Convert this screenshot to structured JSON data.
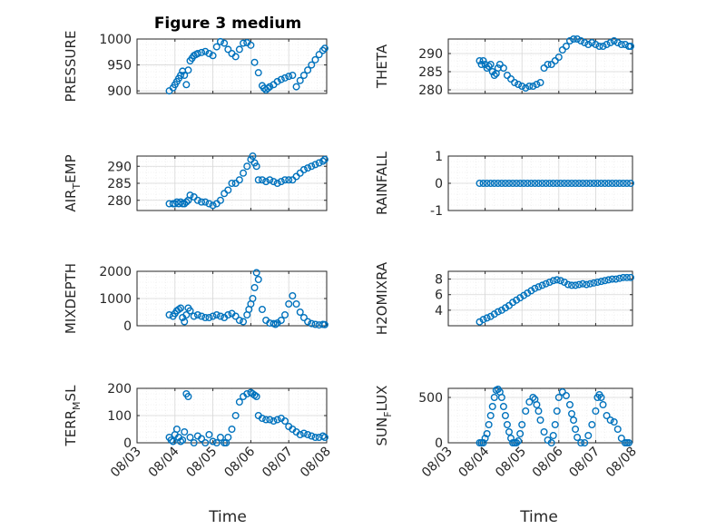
{
  "figure_title": "Figure 3 medium",
  "x_axis_label": "Time",
  "x_tick_labels": [
    "08/03",
    "08/04",
    "08/05",
    "08/06",
    "08/07",
    "08/08"
  ],
  "colors": {
    "marker": "#0072bd",
    "axis": "#262626",
    "grid_major": "#d7d7d7",
    "grid_minor": "#e8e8e8"
  },
  "chart_data": [
    {
      "type": "scatter",
      "title": "Figure 3 medium",
      "ylabel": "PRESSURE",
      "ylabel_sub": "",
      "ylabel_rest": "",
      "xlabel": "",
      "xlim": [
        0,
        5
      ],
      "ylim": [
        895,
        1000
      ],
      "yticks": [
        900,
        950,
        1000
      ],
      "xtick_labels_shown": false,
      "grid": true,
      "x": [
        0.85,
        0.95,
        1.0,
        1.05,
        1.1,
        1.15,
        1.2,
        1.25,
        1.3,
        1.35,
        1.4,
        1.45,
        1.5,
        1.55,
        1.6,
        1.7,
        1.8,
        1.9,
        2.0,
        2.1,
        2.2,
        2.3,
        2.4,
        2.5,
        2.6,
        2.7,
        2.8,
        2.9,
        3.0,
        3.1,
        3.2,
        3.3,
        3.35,
        3.4,
        3.45,
        3.5,
        3.6,
        3.7,
        3.8,
        3.9,
        4.0,
        4.1,
        4.2,
        4.3,
        4.4,
        4.5,
        4.6,
        4.7,
        4.8,
        4.9,
        4.95
      ],
      "y": [
        900,
        906,
        912,
        918,
        924,
        930,
        938,
        930,
        912,
        940,
        958,
        963,
        968,
        970,
        972,
        974,
        976,
        972,
        968,
        985,
        995,
        992,
        980,
        972,
        966,
        980,
        992,
        993,
        988,
        955,
        935,
        910,
        905,
        902,
        905,
        908,
        912,
        918,
        922,
        925,
        928,
        930,
        908,
        920,
        930,
        940,
        950,
        960,
        970,
        978,
        982
      ]
    },
    {
      "type": "scatter",
      "title": "",
      "ylabel": "THETA",
      "ylabel_sub": "",
      "ylabel_rest": "",
      "xlabel": "",
      "xlim": [
        0,
        5
      ],
      "ylim": [
        279,
        294
      ],
      "yticks": [
        280,
        285,
        290
      ],
      "xtick_labels_shown": false,
      "grid": true,
      "x": [
        0.85,
        0.9,
        0.95,
        1.0,
        1.05,
        1.1,
        1.15,
        1.2,
        1.25,
        1.3,
        1.35,
        1.4,
        1.5,
        1.6,
        1.7,
        1.8,
        1.9,
        2.0,
        2.1,
        2.2,
        2.3,
        2.4,
        2.5,
        2.6,
        2.7,
        2.8,
        2.9,
        3.0,
        3.1,
        3.2,
        3.3,
        3.4,
        3.5,
        3.6,
        3.7,
        3.8,
        3.9,
        4.0,
        4.1,
        4.2,
        4.3,
        4.4,
        4.5,
        4.6,
        4.7,
        4.8,
        4.9,
        4.95
      ],
      "y": [
        288,
        287,
        288,
        287,
        286,
        286.5,
        287,
        285,
        284,
        284.5,
        286,
        287,
        286,
        284,
        283,
        282,
        281.5,
        281,
        280.5,
        281,
        281,
        281.5,
        282,
        286,
        287,
        287,
        288,
        289,
        291,
        292,
        293.5,
        294,
        294,
        293.5,
        293,
        292.5,
        293,
        292.5,
        292,
        292,
        292.5,
        293,
        293.5,
        293,
        292.5,
        292.5,
        292,
        292
      ]
    },
    {
      "type": "scatter",
      "title": "",
      "ylabel": "AIR",
      "ylabel_sub": "T",
      "ylabel_rest": "EMP",
      "xlabel": "",
      "xlim": [
        0,
        5
      ],
      "ylim": [
        277,
        293
      ],
      "yticks": [
        280,
        285,
        290
      ],
      "xtick_labels_shown": false,
      "grid": true,
      "x": [
        0.85,
        0.95,
        1.0,
        1.05,
        1.1,
        1.15,
        1.2,
        1.25,
        1.3,
        1.35,
        1.4,
        1.5,
        1.6,
        1.7,
        1.8,
        1.9,
        2.0,
        2.1,
        2.2,
        2.3,
        2.4,
        2.5,
        2.6,
        2.7,
        2.8,
        2.9,
        3.0,
        3.05,
        3.1,
        3.15,
        3.2,
        3.3,
        3.4,
        3.5,
        3.6,
        3.7,
        3.8,
        3.9,
        4.0,
        4.1,
        4.2,
        4.3,
        4.4,
        4.5,
        4.6,
        4.7,
        4.8,
        4.9,
        4.95
      ],
      "y": [
        279,
        279,
        279,
        279.5,
        279,
        279.5,
        279,
        279,
        279.5,
        280,
        281.5,
        281,
        280,
        279.5,
        279.5,
        279,
        278.5,
        279,
        280,
        282,
        283,
        285,
        285,
        286,
        288,
        290,
        292,
        293,
        291,
        290,
        286,
        286,
        285.5,
        286,
        285.5,
        285,
        285.5,
        286,
        286,
        286,
        287,
        288,
        289,
        289.5,
        290,
        290.5,
        291,
        291.5,
        292
      ]
    },
    {
      "type": "scatter",
      "title": "",
      "ylabel": "RAINFALL",
      "ylabel_sub": "",
      "ylabel_rest": "",
      "xlabel": "",
      "xlim": [
        0,
        5
      ],
      "ylim": [
        -1,
        1
      ],
      "yticks": [
        -1,
        0,
        1
      ],
      "xtick_labels_shown": false,
      "grid": true,
      "x": [
        0.85,
        0.95,
        1.05,
        1.15,
        1.25,
        1.35,
        1.45,
        1.55,
        1.65,
        1.75,
        1.85,
        1.95,
        2.05,
        2.15,
        2.25,
        2.35,
        2.45,
        2.55,
        2.65,
        2.75,
        2.85,
        2.95,
        3.05,
        3.15,
        3.25,
        3.35,
        3.45,
        3.55,
        3.65,
        3.75,
        3.85,
        3.95,
        4.05,
        4.15,
        4.25,
        4.35,
        4.45,
        4.55,
        4.65,
        4.75,
        4.85,
        4.95
      ],
      "y": [
        0,
        0,
        0,
        0,
        0,
        0,
        0,
        0,
        0,
        0,
        0,
        0,
        0,
        0,
        0,
        0,
        0,
        0,
        0,
        0,
        0,
        0,
        0,
        0,
        0,
        0,
        0,
        0,
        0,
        0,
        0,
        0,
        0,
        0,
        0,
        0,
        0,
        0,
        0,
        0,
        0,
        0
      ]
    },
    {
      "type": "scatter",
      "title": "",
      "ylabel": "MIXDEPTH",
      "ylabel_sub": "",
      "ylabel_rest": "",
      "xlabel": "",
      "xlim": [
        0,
        5
      ],
      "ylim": [
        0,
        2000
      ],
      "yticks": [
        0,
        1000,
        2000
      ],
      "xtick_labels_shown": false,
      "grid": true,
      "x": [
        0.85,
        0.95,
        1.0,
        1.05,
        1.1,
        1.15,
        1.2,
        1.25,
        1.3,
        1.35,
        1.4,
        1.5,
        1.6,
        1.7,
        1.8,
        1.9,
        2.0,
        2.1,
        2.2,
        2.3,
        2.4,
        2.5,
        2.6,
        2.7,
        2.8,
        2.9,
        2.95,
        3.0,
        3.05,
        3.1,
        3.15,
        3.2,
        3.3,
        3.4,
        3.5,
        3.6,
        3.65,
        3.7,
        3.8,
        3.9,
        4.0,
        4.1,
        4.2,
        4.3,
        4.4,
        4.5,
        4.6,
        4.7,
        4.8,
        4.9,
        4.95
      ],
      "y": [
        400,
        350,
        450,
        550,
        600,
        650,
        300,
        150,
        400,
        650,
        550,
        350,
        400,
        350,
        300,
        300,
        350,
        400,
        350,
        300,
        400,
        450,
        350,
        200,
        150,
        400,
        600,
        800,
        1000,
        1400,
        1950,
        1700,
        600,
        200,
        100,
        80,
        50,
        100,
        200,
        400,
        800,
        1100,
        800,
        500,
        300,
        150,
        80,
        50,
        30,
        50,
        40
      ]
    },
    {
      "type": "scatter",
      "title": "",
      "ylabel": "H2OMIXRA",
      "ylabel_sub": "",
      "ylabel_rest": "",
      "xlabel": "",
      "xlim": [
        0,
        5
      ],
      "ylim": [
        2,
        9
      ],
      "yticks": [
        4,
        6,
        8
      ],
      "xtick_labels_shown": false,
      "grid": true,
      "x": [
        0.85,
        0.95,
        1.05,
        1.15,
        1.25,
        1.35,
        1.45,
        1.55,
        1.65,
        1.75,
        1.85,
        1.95,
        2.05,
        2.15,
        2.25,
        2.35,
        2.45,
        2.55,
        2.65,
        2.75,
        2.85,
        2.95,
        3.05,
        3.15,
        3.25,
        3.35,
        3.45,
        3.55,
        3.65,
        3.75,
        3.85,
        3.95,
        4.05,
        4.15,
        4.25,
        4.35,
        4.45,
        4.55,
        4.65,
        4.75,
        4.85,
        4.95
      ],
      "y": [
        2.5,
        2.8,
        3.0,
        3.2,
        3.5,
        3.8,
        4.0,
        4.3,
        4.6,
        5.0,
        5.3,
        5.6,
        5.9,
        6.2,
        6.5,
        6.8,
        7.0,
        7.2,
        7.4,
        7.6,
        7.8,
        7.9,
        7.8,
        7.6,
        7.3,
        7.2,
        7.2,
        7.3,
        7.4,
        7.3,
        7.4,
        7.5,
        7.6,
        7.7,
        7.8,
        7.9,
        8.0,
        8.0,
        8.1,
        8.2,
        8.2,
        8.2
      ]
    },
    {
      "type": "scatter",
      "title": "",
      "ylabel": "TERR",
      "ylabel_sub": "M",
      "ylabel_rest": "SL",
      "xlabel": "",
      "xlim": [
        0,
        5
      ],
      "ylim": [
        0,
        200
      ],
      "yticks": [
        0,
        100,
        200
      ],
      "xtick_labels_shown": true,
      "grid": true,
      "x": [
        0.85,
        0.9,
        0.95,
        1.0,
        1.05,
        1.1,
        1.15,
        1.2,
        1.25,
        1.3,
        1.35,
        1.4,
        1.5,
        1.6,
        1.7,
        1.8,
        1.9,
        2.0,
        2.1,
        2.2,
        2.3,
        2.35,
        2.4,
        2.5,
        2.6,
        2.7,
        2.8,
        2.9,
        3.0,
        3.05,
        3.1,
        3.15,
        3.2,
        3.3,
        3.4,
        3.5,
        3.6,
        3.7,
        3.8,
        3.9,
        4.0,
        4.1,
        4.2,
        4.3,
        4.4,
        4.5,
        4.6,
        4.7,
        4.8,
        4.9,
        4.95
      ],
      "y": [
        20,
        10,
        5,
        30,
        50,
        20,
        5,
        10,
        40,
        180,
        170,
        20,
        0,
        25,
        15,
        0,
        30,
        5,
        0,
        20,
        0,
        0,
        20,
        50,
        100,
        150,
        170,
        180,
        185,
        180,
        175,
        170,
        100,
        90,
        85,
        85,
        80,
        85,
        90,
        80,
        60,
        50,
        40,
        30,
        35,
        30,
        25,
        20,
        20,
        25,
        20
      ]
    },
    {
      "type": "scatter",
      "title": "",
      "ylabel": "SUN",
      "ylabel_sub": "F",
      "ylabel_rest": "LUX",
      "xlabel": "",
      "xlim": [
        0,
        5
      ],
      "ylim": [
        0,
        600
      ],
      "yticks": [
        0,
        500
      ],
      "xtick_labels_shown": true,
      "grid": true,
      "x": [
        0.85,
        0.9,
        0.95,
        1.0,
        1.05,
        1.1,
        1.15,
        1.2,
        1.25,
        1.3,
        1.35,
        1.4,
        1.45,
        1.5,
        1.55,
        1.6,
        1.65,
        1.7,
        1.75,
        1.8,
        1.85,
        1.9,
        1.95,
        2.0,
        2.1,
        2.2,
        2.3,
        2.35,
        2.4,
        2.45,
        2.5,
        2.6,
        2.7,
        2.8,
        2.85,
        2.9,
        2.95,
        3.0,
        3.1,
        3.2,
        3.3,
        3.35,
        3.4,
        3.45,
        3.5,
        3.6,
        3.7,
        3.8,
        3.9,
        4.0,
        4.05,
        4.1,
        4.15,
        4.2,
        4.3,
        4.4,
        4.5,
        4.6,
        4.7,
        4.8,
        4.85,
        4.9
      ],
      "y": [
        0,
        0,
        0,
        50,
        100,
        200,
        300,
        400,
        500,
        580,
        590,
        560,
        500,
        400,
        300,
        200,
        120,
        50,
        0,
        0,
        0,
        20,
        100,
        200,
        350,
        450,
        500,
        480,
        420,
        350,
        250,
        120,
        30,
        0,
        80,
        200,
        350,
        500,
        560,
        520,
        420,
        320,
        250,
        150,
        60,
        0,
        0,
        80,
        200,
        350,
        500,
        530,
        500,
        420,
        300,
        250,
        230,
        150,
        50,
        0,
        0,
        0
      ]
    }
  ]
}
